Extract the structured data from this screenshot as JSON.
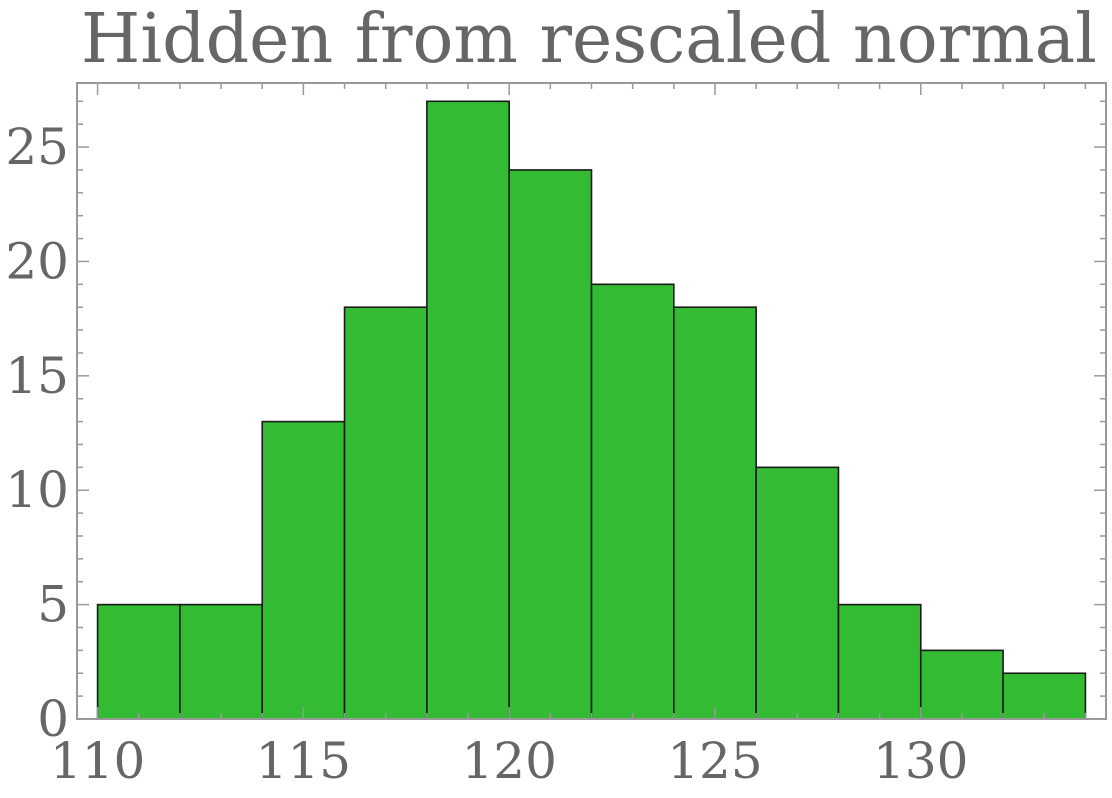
{
  "chart_data": {
    "type": "bar",
    "title": "Hidden from rescaled normal",
    "xlabel": "",
    "ylabel": "",
    "bins": [
      {
        "x0": 110,
        "x1": 112,
        "count": 5
      },
      {
        "x0": 112,
        "x1": 114,
        "count": 5
      },
      {
        "x0": 114,
        "x1": 116,
        "count": 13
      },
      {
        "x0": 116,
        "x1": 118,
        "count": 18
      },
      {
        "x0": 118,
        "x1": 120,
        "count": 27
      },
      {
        "x0": 120,
        "x1": 122,
        "count": 24
      },
      {
        "x0": 122,
        "x1": 124,
        "count": 19
      },
      {
        "x0": 124,
        "x1": 126,
        "count": 18
      },
      {
        "x0": 126,
        "x1": 128,
        "count": 11
      },
      {
        "x0": 128,
        "x1": 130,
        "count": 5
      },
      {
        "x0": 130,
        "x1": 132,
        "count": 3
      },
      {
        "x0": 132,
        "x1": 134,
        "count": 2
      }
    ],
    "xlim": [
      109.5,
      134.5
    ],
    "ylim": [
      0,
      27.8
    ],
    "x_ticks": [
      110,
      115,
      120,
      125,
      130
    ],
    "y_ticks": [
      0,
      5,
      10,
      15,
      20,
      25
    ],
    "bar_color": "#33bb33",
    "grid": false,
    "legend": "none"
  }
}
